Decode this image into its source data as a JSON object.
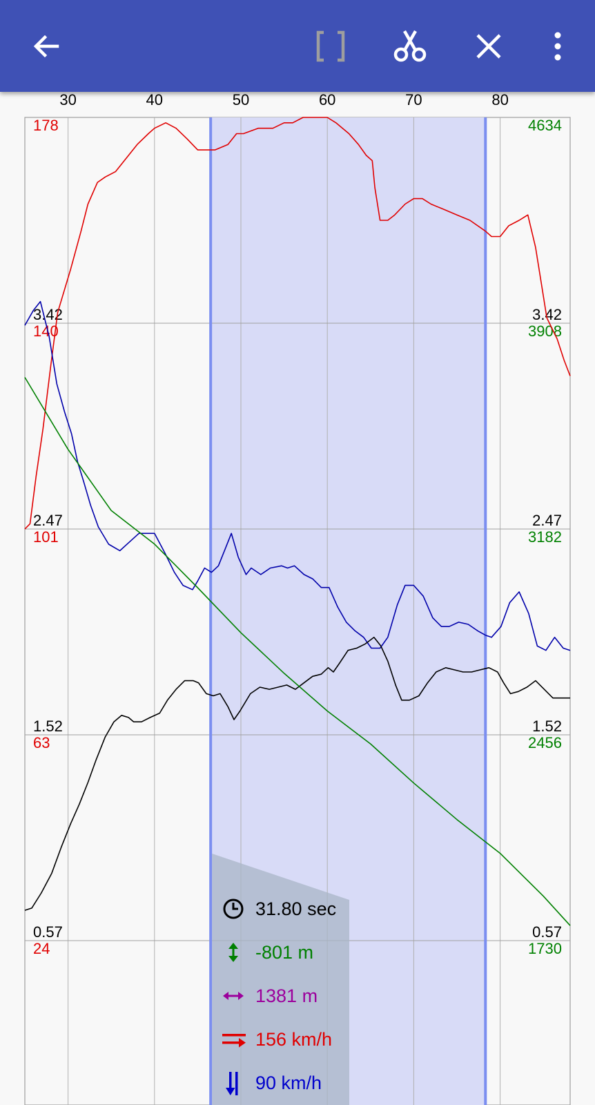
{
  "toolbar": {
    "back_icon": "arrow-left-icon",
    "bracket_icon": "bracket-icon",
    "cut_icon": "scissors-icon",
    "close_icon": "close-icon",
    "more_icon": "more-vert-icon",
    "color": "#3f51b5"
  },
  "chart_data": {
    "type": "line",
    "x_ticks": [
      "30",
      "40",
      "50",
      "60",
      "70",
      "80"
    ],
    "xlim": [
      25,
      88.1
    ],
    "left_axis_black": {
      "ticks": [
        "3.42",
        "2.47",
        "1.52",
        "0.57"
      ],
      "values": [
        3.42,
        2.47,
        1.52,
        0.57
      ],
      "color": "#000000"
    },
    "left_axis_red": {
      "ticks": [
        "178",
        "140",
        "101",
        "63",
        "24"
      ],
      "values": [
        178,
        140,
        101,
        63,
        24
      ],
      "color": "#e00000"
    },
    "right_axis_black": {
      "ticks": [
        "3.42",
        "2.47",
        "1.52",
        "0.57"
      ],
      "values": [
        3.42,
        2.47,
        1.52,
        0.57
      ],
      "color": "#000000"
    },
    "right_axis_green": {
      "ticks": [
        "4634",
        "3908",
        "3182",
        "2456",
        "1730"
      ],
      "values": [
        4634,
        3908,
        3182,
        2456,
        1730
      ],
      "color": "#008000"
    },
    "selection": {
      "start": 46.5,
      "end": 78.3,
      "fill": "#d8dbf7",
      "border": "#7b8ef0"
    },
    "series": [
      {
        "color": "#e00000",
        "axis": "red",
        "points": [
          [
            25,
            101
          ],
          [
            25.6,
            102
          ],
          [
            26.3,
            111
          ],
          [
            27.1,
            120
          ],
          [
            28,
            132
          ],
          [
            28.8,
            142
          ],
          [
            30.3,
            150
          ],
          [
            31.5,
            157
          ],
          [
            32.3,
            162
          ],
          [
            33.4,
            166
          ],
          [
            34.3,
            167
          ],
          [
            35.5,
            168
          ],
          [
            36.5,
            170
          ],
          [
            38,
            173
          ],
          [
            39.3,
            175
          ],
          [
            40,
            176
          ],
          [
            41.3,
            177
          ],
          [
            42.5,
            176
          ],
          [
            43.8,
            174
          ],
          [
            45,
            172
          ],
          [
            46,
            172
          ],
          [
            47,
            172
          ],
          [
            48.5,
            173
          ],
          [
            49.5,
            175
          ],
          [
            50.3,
            175
          ],
          [
            52,
            176
          ],
          [
            53.7,
            176
          ],
          [
            55,
            177
          ],
          [
            56,
            177
          ],
          [
            57.2,
            178
          ],
          [
            58.8,
            178
          ],
          [
            60,
            178
          ],
          [
            61,
            177
          ],
          [
            62.5,
            175
          ],
          [
            63.6,
            173
          ],
          [
            64.5,
            171
          ],
          [
            65.2,
            170
          ],
          [
            65.5,
            165
          ],
          [
            66.1,
            159
          ],
          [
            67,
            159
          ],
          [
            67.8,
            160
          ],
          [
            69,
            162
          ],
          [
            70,
            163
          ],
          [
            71,
            163
          ],
          [
            72,
            162
          ],
          [
            73.5,
            161
          ],
          [
            75,
            160
          ],
          [
            76.5,
            159
          ],
          [
            78.3,
            157
          ],
          [
            79,
            156
          ],
          [
            80,
            156
          ],
          [
            81,
            158
          ],
          [
            82.2,
            159
          ],
          [
            83.2,
            160
          ],
          [
            84.1,
            154
          ],
          [
            84.8,
            147
          ],
          [
            85.4,
            141
          ],
          [
            86.6,
            137
          ],
          [
            87.4,
            133
          ],
          [
            88.1,
            130
          ]
        ]
      },
      {
        "color": "#0000aa",
        "axis": "black",
        "points": [
          [
            25,
            3.41
          ],
          [
            26,
            3.48
          ],
          [
            26.8,
            3.52
          ],
          [
            27.8,
            3.36
          ],
          [
            28.7,
            3.14
          ],
          [
            29.6,
            3.01
          ],
          [
            30.4,
            2.91
          ],
          [
            31.1,
            2.78
          ],
          [
            31.8,
            2.69
          ],
          [
            32.6,
            2.58
          ],
          [
            33.5,
            2.48
          ],
          [
            34.7,
            2.4
          ],
          [
            36,
            2.37
          ],
          [
            37.1,
            2.41
          ],
          [
            38.2,
            2.45
          ],
          [
            39,
            2.45
          ],
          [
            40,
            2.45
          ],
          [
            41.2,
            2.36
          ],
          [
            42.3,
            2.27
          ],
          [
            43.3,
            2.21
          ],
          [
            44.4,
            2.19
          ],
          [
            45,
            2.23
          ],
          [
            45.8,
            2.29
          ],
          [
            46.6,
            2.27
          ],
          [
            47.4,
            2.3
          ],
          [
            48.2,
            2.38
          ],
          [
            48.9,
            2.45
          ],
          [
            49.7,
            2.34
          ],
          [
            50.6,
            2.26
          ],
          [
            51.2,
            2.29
          ],
          [
            52.3,
            2.26
          ],
          [
            53.4,
            2.29
          ],
          [
            54.7,
            2.3
          ],
          [
            55.4,
            2.29
          ],
          [
            56.2,
            2.3
          ],
          [
            57.3,
            2.26
          ],
          [
            58.3,
            2.24
          ],
          [
            59.3,
            2.2
          ],
          [
            60.2,
            2.2
          ],
          [
            61.2,
            2.11
          ],
          [
            62.2,
            2.04
          ],
          [
            63.2,
            2.0
          ],
          [
            64.2,
            1.97
          ],
          [
            65.1,
            1.92
          ],
          [
            66.1,
            1.92
          ],
          [
            67,
            1.97
          ],
          [
            68.1,
            2.12
          ],
          [
            69,
            2.21
          ],
          [
            70,
            2.21
          ],
          [
            71.1,
            2.16
          ],
          [
            72.2,
            2.06
          ],
          [
            73.2,
            2.02
          ],
          [
            74.1,
            2.02
          ],
          [
            75.2,
            2.04
          ],
          [
            76.3,
            2.03
          ],
          [
            77.4,
            2.0
          ],
          [
            78.3,
            1.98
          ],
          [
            79,
            1.97
          ],
          [
            80.1,
            2.02
          ],
          [
            81.1,
            2.13
          ],
          [
            82.2,
            2.18
          ],
          [
            83.3,
            2.08
          ],
          [
            84.3,
            1.93
          ],
          [
            85.3,
            1.91
          ],
          [
            86.3,
            1.97
          ],
          [
            87.3,
            1.92
          ],
          [
            88.1,
            1.91
          ]
        ]
      },
      {
        "color": "#000000",
        "axis": "black",
        "points": [
          [
            25,
            0.71
          ],
          [
            25.8,
            0.72
          ],
          [
            26.9,
            0.79
          ],
          [
            28.1,
            0.88
          ],
          [
            29.2,
            1.0
          ],
          [
            30.3,
            1.11
          ],
          [
            31.3,
            1.2
          ],
          [
            32.3,
            1.3
          ],
          [
            33.2,
            1.4
          ],
          [
            34.3,
            1.51
          ],
          [
            35.3,
            1.58
          ],
          [
            36.2,
            1.61
          ],
          [
            37,
            1.6
          ],
          [
            37.6,
            1.58
          ],
          [
            38.5,
            1.58
          ],
          [
            39.5,
            1.6
          ],
          [
            40.6,
            1.62
          ],
          [
            41.5,
            1.68
          ],
          [
            42.5,
            1.73
          ],
          [
            43.5,
            1.77
          ],
          [
            44.5,
            1.77
          ],
          [
            45.1,
            1.76
          ],
          [
            46,
            1.71
          ],
          [
            46.8,
            1.7
          ],
          [
            47.6,
            1.71
          ],
          [
            48.5,
            1.65
          ],
          [
            49.2,
            1.59
          ],
          [
            49.9,
            1.63
          ],
          [
            51.1,
            1.71
          ],
          [
            52.2,
            1.74
          ],
          [
            53.3,
            1.73
          ],
          [
            54.3,
            1.74
          ],
          [
            55.3,
            1.75
          ],
          [
            56.3,
            1.73
          ],
          [
            57.3,
            1.76
          ],
          [
            58.3,
            1.79
          ],
          [
            59.3,
            1.8
          ],
          [
            60.1,
            1.83
          ],
          [
            60.7,
            1.81
          ],
          [
            61.4,
            1.85
          ],
          [
            62.4,
            1.91
          ],
          [
            63.4,
            1.92
          ],
          [
            64.4,
            1.94
          ],
          [
            65.4,
            1.97
          ],
          [
            66.2,
            1.93
          ],
          [
            67,
            1.86
          ],
          [
            67.9,
            1.75
          ],
          [
            68.6,
            1.68
          ],
          [
            69.5,
            1.68
          ],
          [
            70.6,
            1.7
          ],
          [
            71.6,
            1.76
          ],
          [
            72.6,
            1.81
          ],
          [
            73.7,
            1.83
          ],
          [
            74.7,
            1.82
          ],
          [
            75.7,
            1.81
          ],
          [
            76.7,
            1.81
          ],
          [
            77.7,
            1.82
          ],
          [
            78.7,
            1.83
          ],
          [
            79.7,
            1.81
          ],
          [
            80.4,
            1.76
          ],
          [
            81.2,
            1.71
          ],
          [
            82.1,
            1.72
          ],
          [
            83.1,
            1.74
          ],
          [
            84.1,
            1.77
          ],
          [
            85.1,
            1.73
          ],
          [
            86.1,
            1.69
          ],
          [
            87.1,
            1.69
          ],
          [
            88.1,
            1.69
          ]
        ]
      },
      {
        "color": "#008000",
        "axis": "green",
        "points": [
          [
            25,
            3717
          ],
          [
            30,
            3463
          ],
          [
            35,
            3247
          ],
          [
            40,
            3129
          ],
          [
            45,
            2975
          ],
          [
            50,
            2816
          ],
          [
            55,
            2673
          ],
          [
            60,
            2540
          ],
          [
            65,
            2424
          ],
          [
            70,
            2286
          ],
          [
            75,
            2157
          ],
          [
            80,
            2038
          ],
          [
            85,
            1887
          ],
          [
            88.1,
            1783
          ]
        ]
      }
    ]
  },
  "stats": [
    {
      "icon": "clock-icon",
      "value": "31.80 sec",
      "color": "#000000"
    },
    {
      "icon": "vertical-arrows-icon",
      "value": "-801 m",
      "color": "#008000"
    },
    {
      "icon": "horizontal-arrows-icon",
      "value": "1381 m",
      "color": "#9c009c"
    },
    {
      "icon": "horizontal-speed-icon",
      "value": "156 km/h",
      "color": "#e00000"
    },
    {
      "icon": "vertical-speed-icon",
      "value": "90 km/h",
      "color": "#0000cc"
    }
  ]
}
